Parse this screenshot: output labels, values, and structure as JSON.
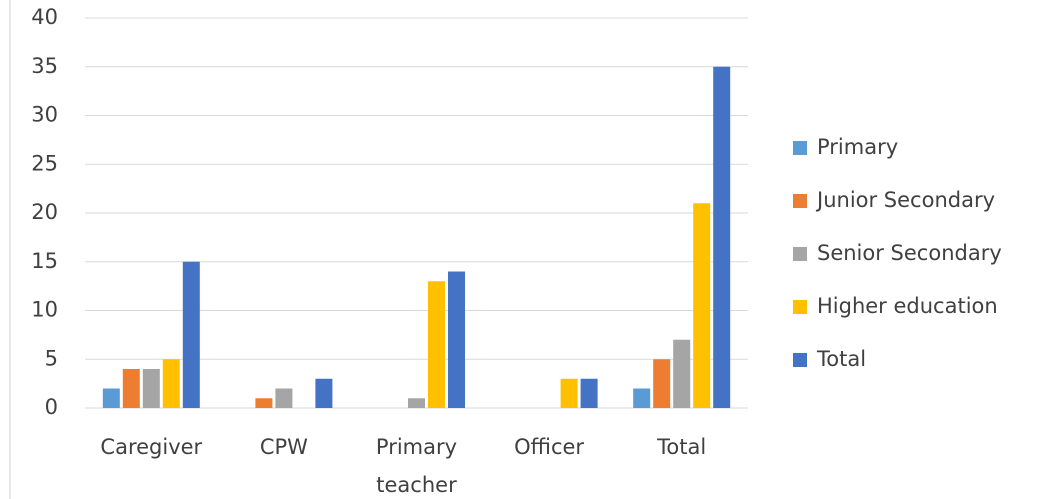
{
  "chart_data": {
    "type": "bar",
    "categories": [
      "Caregiver",
      "CPW",
      "Primary teacher",
      "Officer",
      "Total"
    ],
    "series": [
      {
        "name": "Primary",
        "color": "#5b9bd5",
        "values": [
          2,
          0,
          0,
          0,
          2
        ]
      },
      {
        "name": "Junior Secondary",
        "color": "#ed7d31",
        "values": [
          4,
          1,
          0,
          0,
          5
        ]
      },
      {
        "name": "Senior Secondary",
        "color": "#a5a5a5",
        "values": [
          4,
          2,
          1,
          0,
          7
        ]
      },
      {
        "name": "Higher education",
        "color": "#ffc000",
        "values": [
          5,
          0,
          13,
          3,
          21
        ]
      },
      {
        "name": "Total",
        "color": "#4472c4",
        "values": [
          15,
          3,
          14,
          3,
          35
        ]
      }
    ],
    "ylim": [
      0,
      40
    ],
    "yticks": [
      0,
      5,
      10,
      15,
      20,
      25,
      30,
      35,
      40
    ],
    "grid": true,
    "legend": "right"
  }
}
